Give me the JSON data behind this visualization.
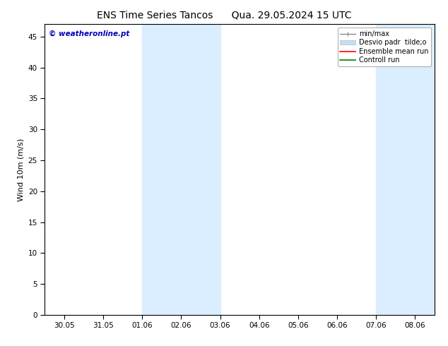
{
  "title": "ENS Time Series Tancos      Qua. 29.05.2024 15 UTC",
  "ylabel": "Wind 10m (m/s)",
  "ylim": [
    0,
    47
  ],
  "yticks": [
    0,
    5,
    10,
    15,
    20,
    25,
    30,
    35,
    40,
    45
  ],
  "x_tick_labels": [
    "30.05",
    "31.05",
    "01.06",
    "02.06",
    "03.06",
    "04.06",
    "05.06",
    "06.06",
    "07.06",
    "08.06"
  ],
  "xlim_days": [
    0,
    9
  ],
  "shaded_bands": [
    {
      "xmin": 2.0,
      "xmax": 4.0,
      "color": "#daeeff"
    },
    {
      "xmin": 8.0,
      "xmax": 9.5,
      "color": "#daeeff"
    }
  ],
  "watermark": "© weatheronline.pt",
  "watermark_color": "#0000bb",
  "background_color": "#ffffff",
  "spine_color": "#000000",
  "title_fontsize": 10,
  "label_fontsize": 8,
  "tick_fontsize": 7.5,
  "legend_fontsize": 7,
  "legend_entries": [
    {
      "label": "min/max",
      "color": "#888888"
    },
    {
      "label": "Desvio padr  tilde;o",
      "color": "#c8dff0"
    },
    {
      "label": "Ensemble mean run",
      "color": "#ff0000"
    },
    {
      "label": "Controll run",
      "color": "#008000"
    }
  ]
}
